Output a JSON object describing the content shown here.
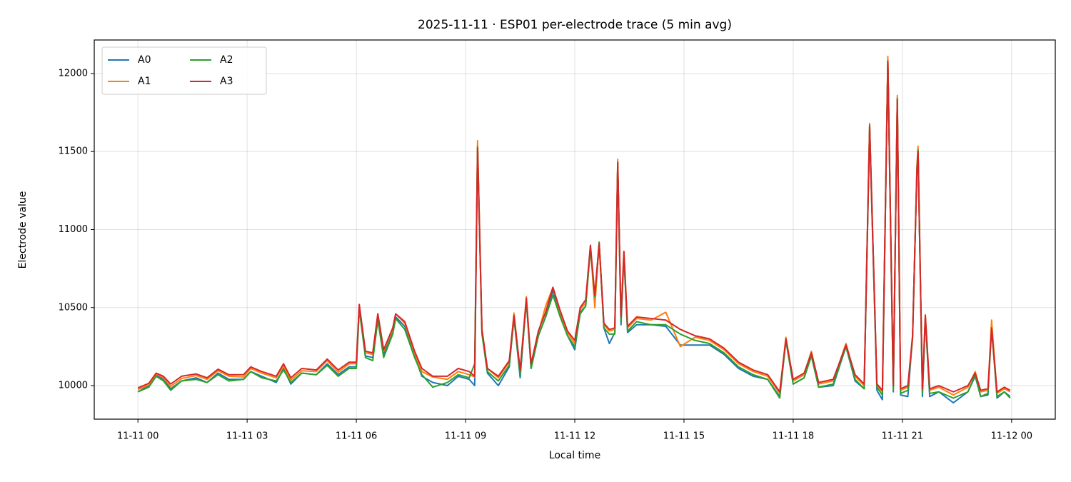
{
  "chart_data": {
    "type": "line",
    "title": "2025-11-11 · ESP01 per-electrode trace (5 min avg)",
    "x_label": "Local time",
    "y_label": "Electrode value",
    "x": [
      0.0,
      0.3,
      0.5,
      0.7,
      0.9,
      1.2,
      1.6,
      1.9,
      2.2,
      2.5,
      2.9,
      3.1,
      3.4,
      3.8,
      4.0,
      4.2,
      4.5,
      4.9,
      5.2,
      5.5,
      5.8,
      6.0,
      6.08,
      6.25,
      6.45,
      6.59,
      6.75,
      7.0,
      7.08,
      7.33,
      7.6,
      7.8,
      8.1,
      8.5,
      8.8,
      9.1,
      9.25,
      9.33,
      9.45,
      9.6,
      9.9,
      10.2,
      10.33,
      10.5,
      10.67,
      10.8,
      11.0,
      11.2,
      11.4,
      11.6,
      11.8,
      12.0,
      12.15,
      12.3,
      12.43,
      12.55,
      12.67,
      12.8,
      12.95,
      13.1,
      13.18,
      13.27,
      13.35,
      13.45,
      13.7,
      14.1,
      14.5,
      14.9,
      15.3,
      15.7,
      16.1,
      16.5,
      16.9,
      17.3,
      17.63,
      17.8,
      18.0,
      18.3,
      18.5,
      18.7,
      19.1,
      19.45,
      19.7,
      19.95,
      20.1,
      20.3,
      20.45,
      20.6,
      20.75,
      20.86,
      20.95,
      21.15,
      21.28,
      21.4,
      21.43,
      21.55,
      21.63,
      21.75,
      22.0,
      22.4,
      22.8,
      23.0,
      23.15,
      23.35,
      23.45,
      23.6,
      23.8,
      23.96
    ],
    "series": [
      {
        "name": "A0",
        "color": "#1f77b4",
        "values": [
          9960,
          10000,
          10070,
          10040,
          9980,
          10030,
          10050,
          10020,
          10080,
          10040,
          10040,
          10090,
          10060,
          10020,
          10110,
          10010,
          10080,
          10070,
          10140,
          10070,
          10120,
          10120,
          10500,
          10190,
          10180,
          10440,
          10200,
          10340,
          10440,
          10380,
          10190,
          10060,
          10020,
          10000,
          10060,
          10040,
          10000,
          11540,
          10340,
          10080,
          10000,
          10120,
          10440,
          10050,
          10550,
          10110,
          10320,
          10440,
          10610,
          10450,
          10320,
          10230,
          10470,
          10510,
          10890,
          10540,
          10910,
          10370,
          10270,
          10340,
          11430,
          10390,
          10840,
          10340,
          10390,
          10390,
          10380,
          10260,
          10260,
          10260,
          10200,
          10110,
          10060,
          10040,
          9930,
          10290,
          10010,
          10050,
          10190,
          9990,
          10000,
          10250,
          10030,
          9980,
          11640,
          9970,
          9910,
          12090,
          9960,
          11840,
          9940,
          9930,
          10310,
          11390,
          11510,
          9930,
          10440,
          9930,
          9960,
          9890,
          9960,
          10060,
          9930,
          9940,
          10390,
          9920,
          9960,
          9930
        ]
      },
      {
        "name": "A1",
        "color": "#ff7f0e",
        "values": [
          9975,
          10005,
          10075,
          10050,
          9995,
          10045,
          10065,
          10040,
          10095,
          10060,
          10055,
          10110,
          10080,
          10050,
          10125,
          10035,
          10095,
          10090,
          10160,
          10085,
          10140,
          10140,
          10515,
          10210,
          10200,
          10460,
          10220,
          10360,
          10460,
          10400,
          10210,
          10090,
          10055,
          10040,
          10090,
          10070,
          10055,
          11570,
          10360,
          10110,
          10050,
          10150,
          10465,
          10090,
          10570,
          10130,
          10340,
          10510,
          10630,
          10470,
          10340,
          10270,
          10490,
          10530,
          10890,
          10500,
          10910,
          10390,
          10350,
          10360,
          11450,
          10430,
          10860,
          10370,
          10430,
          10420,
          10470,
          10250,
          10310,
          10290,
          10230,
          10140,
          10090,
          10060,
          9950,
          10310,
          10030,
          10070,
          10220,
          10010,
          10030,
          10270,
          10060,
          10000,
          11680,
          10000,
          9960,
          12110,
          9990,
          11860,
          9970,
          9990,
          10300,
          11410,
          11535,
          9970,
          10455,
          9970,
          9990,
          9940,
          9990,
          10090,
          9960,
          9970,
          10420,
          9950,
          9980,
          9960
        ]
      },
      {
        "name": "A2",
        "color": "#2ca02c",
        "values": [
          9960,
          9990,
          10060,
          10030,
          9970,
          10030,
          10040,
          10020,
          10070,
          10030,
          10040,
          10090,
          10050,
          10030,
          10100,
          10020,
          10080,
          10070,
          10130,
          10060,
          10110,
          10110,
          10490,
          10180,
          10160,
          10420,
          10180,
          10330,
          10430,
          10360,
          10180,
          10070,
          9990,
          10020,
          10070,
          10050,
          10140,
          11530,
          10330,
          10090,
          10030,
          10130,
          10430,
          10070,
          10540,
          10110,
          10320,
          10440,
          10580,
          10440,
          10320,
          10250,
          10460,
          10510,
          10880,
          10570,
          10920,
          10370,
          10330,
          10330,
          11420,
          10410,
          10830,
          10350,
          10410,
          10390,
          10390,
          10330,
          10290,
          10270,
          10210,
          10120,
          10070,
          10040,
          9920,
          10290,
          10010,
          10050,
          10190,
          9990,
          10010,
          10250,
          10040,
          9980,
          11670,
          9990,
          9940,
          12080,
          9970,
          11840,
          9950,
          9970,
          10320,
          11390,
          11510,
          9950,
          10430,
          9950,
          9960,
          9920,
          9960,
          10070,
          9930,
          9950,
          10360,
          9930,
          9960,
          9920
        ]
      },
      {
        "name": "A3",
        "color": "#d62728",
        "values": [
          9985,
          10015,
          10080,
          10060,
          10010,
          10060,
          10075,
          10050,
          10105,
          10070,
          10070,
          10120,
          10090,
          10060,
          10140,
          10050,
          10110,
          10100,
          10170,
          10100,
          10150,
          10150,
          10520,
          10220,
          10210,
          10460,
          10230,
          10370,
          10460,
          10410,
          10220,
          10110,
          10060,
          10060,
          10110,
          10090,
          10060,
          11520,
          10360,
          10110,
          10060,
          10160,
          10450,
          10100,
          10560,
          10140,
          10350,
          10470,
          10630,
          10480,
          10350,
          10290,
          10500,
          10550,
          10900,
          10580,
          10910,
          10400,
          10360,
          10370,
          11430,
          10440,
          10860,
          10380,
          10440,
          10430,
          10420,
          10360,
          10320,
          10300,
          10240,
          10150,
          10100,
          10070,
          9960,
          10300,
          10040,
          10080,
          10210,
          10020,
          10040,
          10260,
          10070,
          10010,
          11660,
          10010,
          9970,
          12080,
          10000,
          11830,
          9980,
          10000,
          10320,
          11380,
          11500,
          9980,
          10450,
          9980,
          10000,
          9960,
          10000,
          10080,
          9970,
          9980,
          10370,
          9960,
          9990,
          9970
        ]
      }
    ],
    "xlim": [
      -1.2,
      25.2
    ],
    "xticks": [
      {
        "value": 0,
        "label": "11-11 00"
      },
      {
        "value": 3,
        "label": "11-11 03"
      },
      {
        "value": 6,
        "label": "11-11 06"
      },
      {
        "value": 9,
        "label": "11-11 09"
      },
      {
        "value": 12,
        "label": "11-11 12"
      },
      {
        "value": 15,
        "label": "11-11 15"
      },
      {
        "value": 18,
        "label": "11-11 18"
      },
      {
        "value": 21,
        "label": "11-11 21"
      },
      {
        "value": 24,
        "label": "11-12 00"
      }
    ],
    "ylim": [
      9785,
      12215
    ],
    "yticks": [
      10000,
      10500,
      11000,
      11500,
      12000
    ],
    "grid": true,
    "legend": "upper left",
    "legend_columns": 2
  }
}
